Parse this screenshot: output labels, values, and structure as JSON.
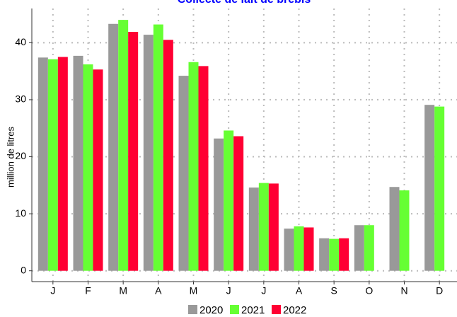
{
  "chart_data": {
    "type": "bar",
    "title": "Collecte de lait de brebis",
    "y_label": "million de litres",
    "categories": [
      "J",
      "F",
      "M",
      "A",
      "M",
      "J",
      "J",
      "A",
      "S",
      "O",
      "N",
      "D"
    ],
    "series": [
      {
        "name": "2020",
        "color": "#999999",
        "values": [
          37.4,
          37.7,
          43.3,
          41.4,
          34.2,
          23.2,
          14.6,
          7.4,
          5.7,
          8.0,
          14.7,
          29.1
        ]
      },
      {
        "name": "2021",
        "color": "#66ff33",
        "values": [
          37.1,
          36.2,
          44.0,
          43.2,
          36.6,
          24.6,
          15.4,
          7.8,
          5.6,
          8.0,
          14.1,
          28.8
        ]
      },
      {
        "name": "2022",
        "color": "#ff0033",
        "values": [
          37.5,
          35.3,
          41.9,
          40.5,
          35.9,
          23.6,
          15.3,
          7.6,
          5.7,
          null,
          null,
          null
        ]
      }
    ],
    "ylim": [
      -1.9,
      46
    ],
    "yticks": [
      0,
      10,
      20,
      30,
      40
    ],
    "grid": true
  }
}
